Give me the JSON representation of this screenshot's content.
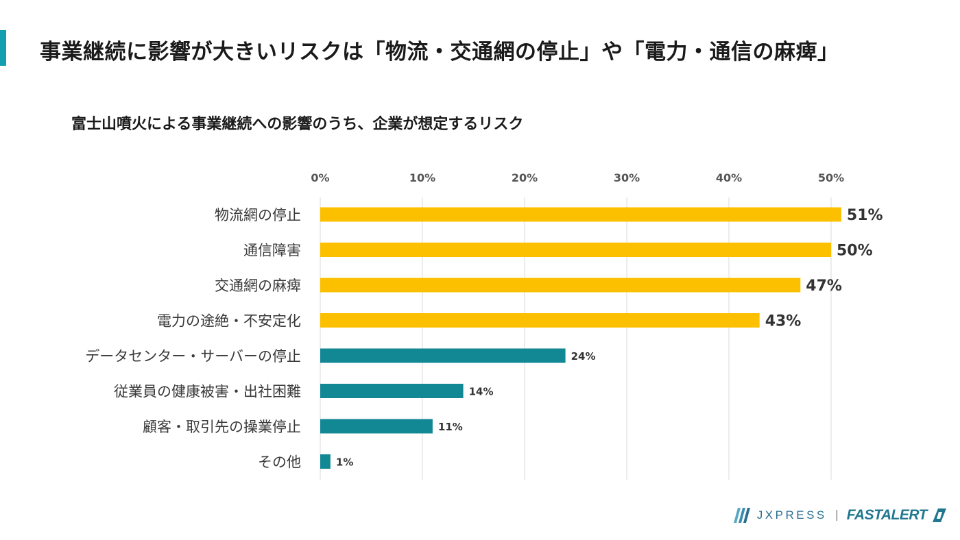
{
  "page": {
    "title": "事業継続に影響が大きいリスクは「物流・交通網の停止」や「電力・通信の麻痺」",
    "accent_color": "#12a0b0"
  },
  "chart_data": {
    "type": "bar",
    "orientation": "horizontal",
    "title": "富士山噴火による事業継続への影響のうち、企業が想定するリスク",
    "categories": [
      "物流網の停止",
      "通信障害",
      "交通網の麻痺",
      "電力の途絶・不安定化",
      "データセンター・サーバーの停止",
      "従業員の健康被害・出社困難",
      "顧客・取引先の操業停止",
      "その他"
    ],
    "values": [
      51,
      50,
      47,
      43,
      24,
      14,
      11,
      1
    ],
    "value_labels": [
      "51%",
      "50%",
      "47%",
      "43%",
      "24%",
      "14%",
      "11%",
      "1%"
    ],
    "tick_labels": [
      "0%",
      "10%",
      "20%",
      "30%",
      "40%",
      "50%"
    ],
    "xlim": [
      0,
      50
    ],
    "x_tick_values": [
      0,
      10,
      20,
      30,
      40,
      50
    ],
    "xaxis_position": "top",
    "grid": true,
    "highlight_count": 4,
    "colors": {
      "highlight": "#fcc000",
      "normal": "#138895",
      "grid": "#d9d9d9",
      "text": "#3a3a3a"
    }
  },
  "footer": {
    "logo1_text": "JXPRESS",
    "logo2_text": "FASTALERT",
    "logo1_icon": "jx-stripes-icon",
    "logo2_icon": "fastalert-bolt-icon"
  }
}
